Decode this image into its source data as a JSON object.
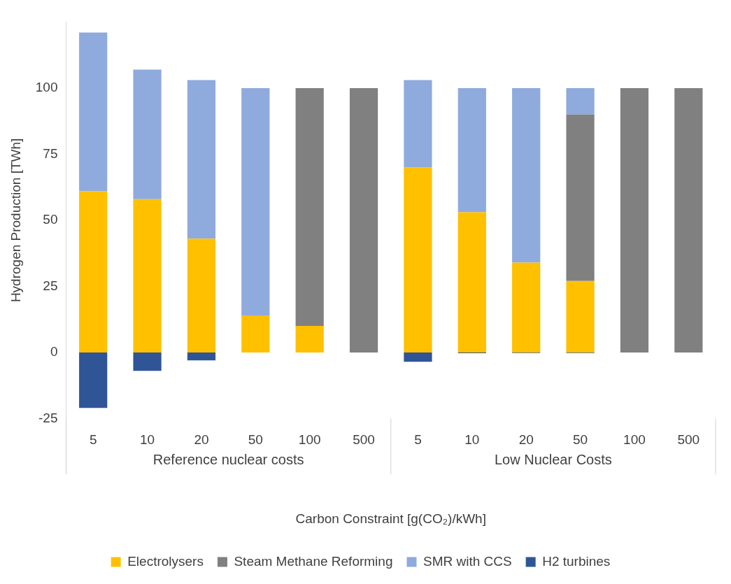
{
  "chart_data": {
    "type": "bar",
    "stacked": true,
    "xlabel": "Carbon Constraint [g(CO₂)/kWh]",
    "ylabel": "Hydrogen Production [TWh]",
    "categories": [
      "5",
      "10",
      "20",
      "50",
      "100",
      "500",
      "5",
      "10",
      "20",
      "50",
      "100",
      "500"
    ],
    "annotations": [
      "Reference nuclear costs",
      "Low Nuclear Costs"
    ],
    "series": [
      {
        "name": "Electrolysers",
        "color": "#ffc000",
        "values": [
          61,
          58,
          43,
          14,
          10,
          0,
          70,
          53,
          34,
          27,
          0,
          0
        ]
      },
      {
        "name": "Steam Methane Reforming",
        "color": "#808080",
        "values": [
          0,
          0,
          0,
          0,
          90,
          100,
          0,
          0,
          0,
          63,
          100,
          100
        ]
      },
      {
        "name": "SMR with CCS",
        "color": "#8faadc",
        "values": [
          60,
          49,
          60,
          86,
          0,
          0,
          33,
          47,
          66,
          10,
          0,
          0
        ]
      },
      {
        "name": "H2 turbines",
        "color": "#2f5597",
        "values": [
          -21,
          -7,
          -3,
          0,
          0,
          0,
          -3.5,
          -0.3,
          -0.2,
          -0.2,
          0,
          0
        ]
      }
    ],
    "ylim": [
      -25,
      125
    ],
    "yticks": [
      -25,
      0,
      25,
      50,
      75,
      100
    ],
    "grid": false,
    "legend": "bottom"
  }
}
